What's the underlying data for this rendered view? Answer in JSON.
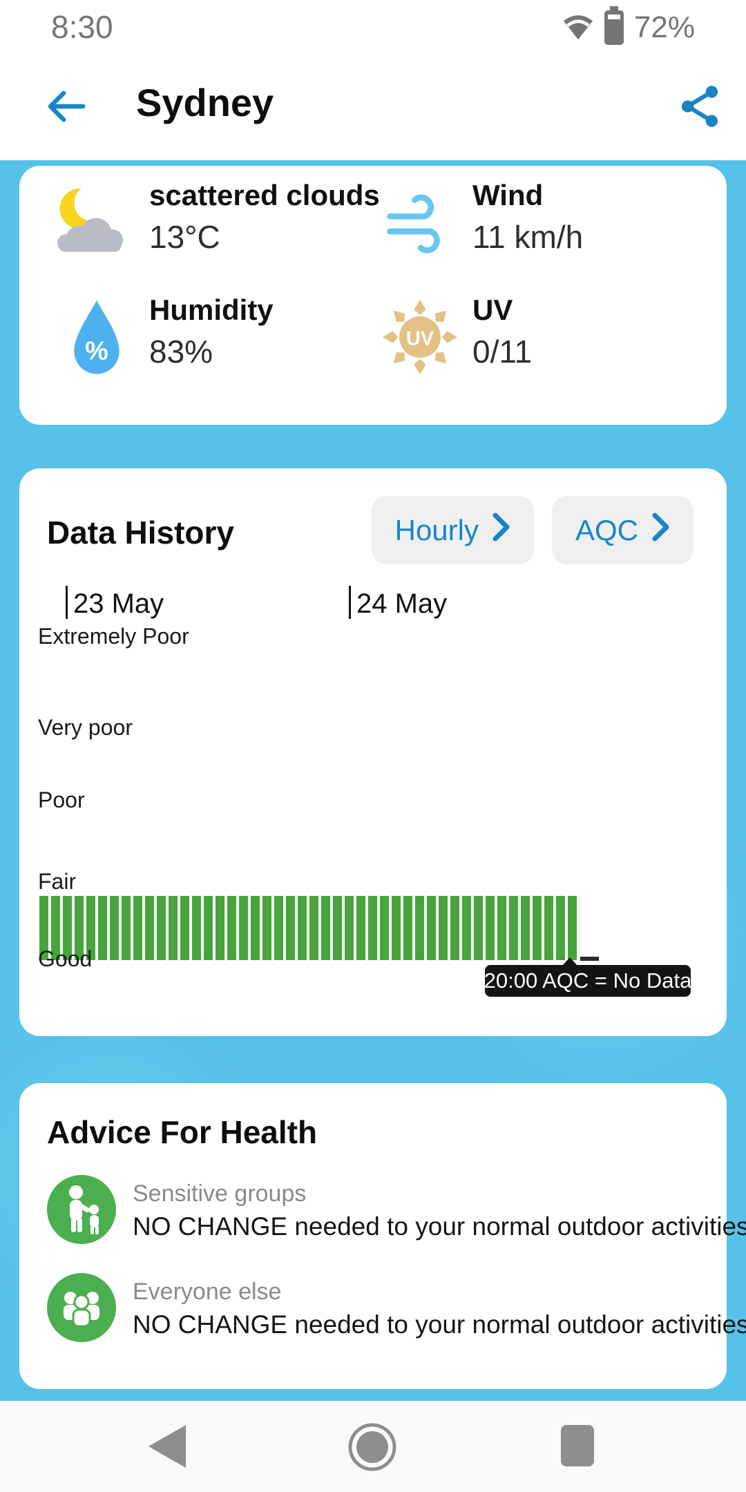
{
  "status_bar": {
    "time": "8:30",
    "battery_percent": "72%",
    "icons": [
      "wifi-icon",
      "battery-icon"
    ]
  },
  "header": {
    "title": "Sydney",
    "back_icon": "back-arrow-icon",
    "share_icon": "share-icon"
  },
  "current_weather": {
    "condition": {
      "label": "scattered clouds",
      "value": "13°C",
      "icon": "moon-cloud-icon"
    },
    "wind": {
      "label": "Wind",
      "value": "11 km/h",
      "icon": "wind-icon"
    },
    "humidity": {
      "label": "Humidity",
      "value": "83%",
      "icon": "humidity-drop-icon"
    },
    "uv": {
      "label": "UV",
      "value": "0/11",
      "icon": "uv-sun-icon"
    }
  },
  "data_history": {
    "title": "Data History",
    "buttons": [
      {
        "label": "Hourly",
        "icon": "chevron-right-icon"
      },
      {
        "label": "AQC",
        "icon": "chevron-right-icon"
      }
    ],
    "x_ticks": [
      "23 May",
      "24 May"
    ],
    "y_labels": [
      "Extremely Poor",
      "Very poor",
      "Poor",
      "Fair",
      "Good"
    ],
    "tooltip": "20:00 AQC = No Data"
  },
  "chart_data": {
    "type": "bar",
    "title": "Data History",
    "x_ticks": [
      "23 May",
      "24 May"
    ],
    "y_categories": [
      "Good",
      "Fair",
      "Poor",
      "Very poor",
      "Extremely Poor"
    ],
    "bar_count": 46,
    "bars_uniform_level": "Fair",
    "bar_color": "#48A53C",
    "no_data_point": {
      "time": "20:00",
      "label": "20:00 AQC = No Data"
    },
    "grid": false,
    "legend": false
  },
  "advice": {
    "title": "Advice For Health",
    "items": [
      {
        "group": "Sensitive groups",
        "text": "NO CHANGE needed to your normal outdoor activities.",
        "icon": "sensitive-groups-icon"
      },
      {
        "group": "Everyone else",
        "text": "NO CHANGE needed to your normal outdoor activities.",
        "icon": "everyone-else-icon"
      }
    ]
  },
  "nav_bar": {
    "icons": [
      "nav-back-icon",
      "nav-home-icon",
      "nav-recents-icon"
    ]
  },
  "colors": {
    "sky_blue": "#56C1E9",
    "accent_blue": "#1786C8",
    "wind_blue": "#67C6F2",
    "drop_blue": "#4CB1ED",
    "bar_green": "#48A53C",
    "advice_green": "#4BAE4F",
    "uv_tan": "#E3C185",
    "tooltip_bg": "#141414",
    "button_bg": "#EFEFEF",
    "muted_gray": "#757575",
    "nav_gray": "#8E8E8E"
  }
}
